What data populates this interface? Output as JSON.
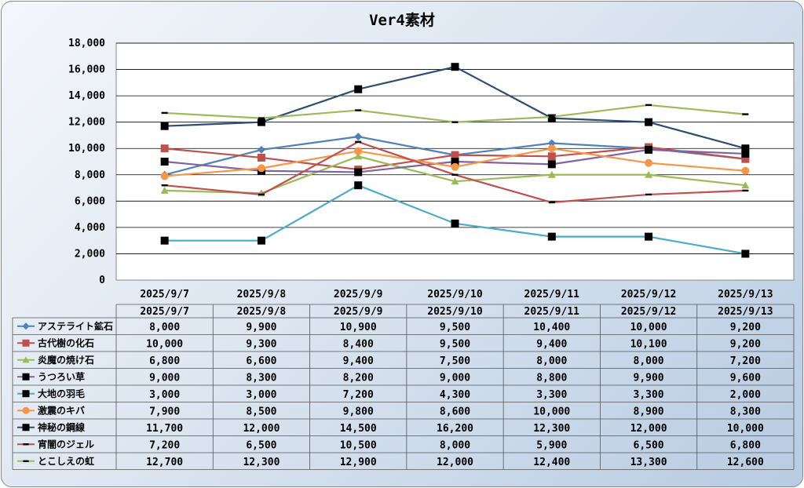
{
  "chart_data": {
    "type": "line",
    "title": "Ver4素材",
    "x": [
      "2025/9/7",
      "2025/9/8",
      "2025/9/9",
      "2025/9/10",
      "2025/9/11",
      "2025/9/12",
      "2025/9/13"
    ],
    "ylim": [
      0,
      18000
    ],
    "yticks": [
      "0",
      "2,000",
      "4,000",
      "6,000",
      "8,000",
      "10,000",
      "12,000",
      "14,000",
      "16,000",
      "18,000"
    ],
    "grid": true,
    "legend": "data-table",
    "series": [
      {
        "name": "アステライト鉱石",
        "color": "#4f81bd",
        "marker": "diamond",
        "values": [
          8000,
          9900,
          10900,
          9500,
          10400,
          10000,
          9200
        ],
        "labels": [
          "8,000",
          "9,900",
          "10,900",
          "9,500",
          "10,400",
          "10,000",
          "9,200"
        ]
      },
      {
        "name": "古代樹の化石",
        "color": "#c0504d",
        "marker": "square",
        "values": [
          10000,
          9300,
          8400,
          9500,
          9400,
          10100,
          9200
        ],
        "labels": [
          "10,000",
          "9,300",
          "8,400",
          "9,500",
          "9,400",
          "10,100",
          "9,200"
        ]
      },
      {
        "name": "炎魔の焼け石",
        "color": "#9bbb59",
        "marker": "triangle",
        "values": [
          6800,
          6600,
          9400,
          7500,
          8000,
          8000,
          7200
        ],
        "labels": [
          "6,800",
          "6,600",
          "9,400",
          "7,500",
          "8,000",
          "8,000",
          "7,200"
        ]
      },
      {
        "name": "うつろい草",
        "color": "#8064a2",
        "marker": "blacksquare",
        "values": [
          9000,
          8300,
          8200,
          9000,
          8800,
          9900,
          9600
        ],
        "labels": [
          "9,000",
          "8,300",
          "8,200",
          "9,000",
          "8,800",
          "9,900",
          "9,600"
        ]
      },
      {
        "name": "大地の羽毛",
        "color": "#4bacc6",
        "marker": "blacksquare",
        "values": [
          3000,
          3000,
          7200,
          4300,
          3300,
          3300,
          2000
        ],
        "labels": [
          "3,000",
          "3,000",
          "7,200",
          "4,300",
          "3,300",
          "3,300",
          "2,000"
        ]
      },
      {
        "name": "激震のキバ",
        "color": "#f79646",
        "marker": "circle",
        "values": [
          7900,
          8500,
          9800,
          8600,
          10000,
          8900,
          8300
        ],
        "labels": [
          "7,900",
          "8,500",
          "9,800",
          "8,600",
          "10,000",
          "8,900",
          "8,300"
        ]
      },
      {
        "name": "神秘の鋼線",
        "color": "#2c4d75",
        "marker": "blacksquare",
        "values": [
          11700,
          12000,
          14500,
          16200,
          12300,
          12000,
          10000
        ],
        "labels": [
          "11,700",
          "12,000",
          "14,500",
          "16,200",
          "12,300",
          "12,000",
          "10,000"
        ]
      },
      {
        "name": "宵闇のジェル",
        "color": "#c0504d",
        "marker": "dash",
        "values": [
          7200,
          6500,
          10500,
          8000,
          5900,
          6500,
          6800
        ],
        "labels": [
          "7,200",
          "6,500",
          "10,500",
          "8,000",
          "5,900",
          "6,500",
          "6,800"
        ]
      },
      {
        "name": "とこしえの虹",
        "color": "#9bbb59",
        "marker": "dash",
        "values": [
          12700,
          12300,
          12900,
          12000,
          12400,
          13300,
          12600
        ],
        "labels": [
          "12,700",
          "12,300",
          "12,900",
          "12,000",
          "12,400",
          "13,300",
          "12,600"
        ]
      }
    ]
  }
}
